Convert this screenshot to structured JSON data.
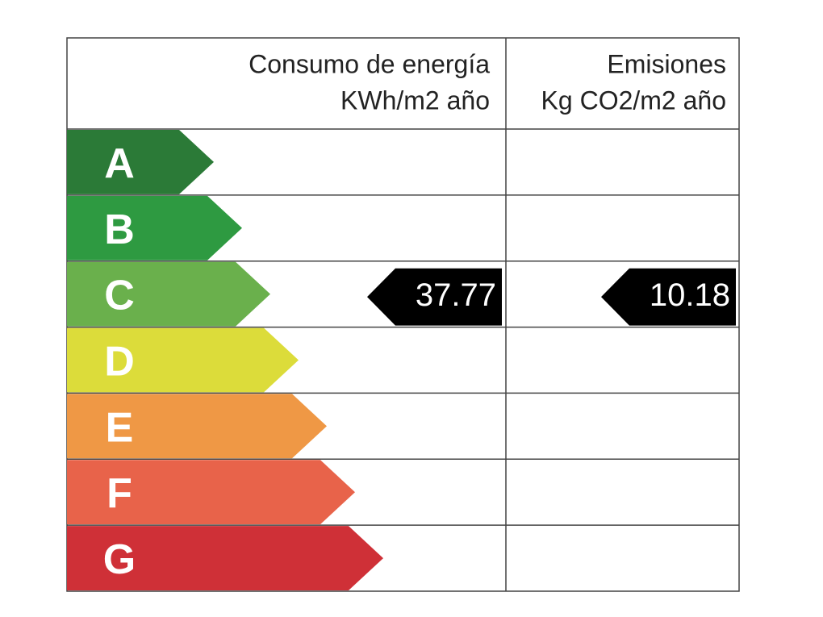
{
  "header": {
    "energy": {
      "title": "Consumo de energía",
      "unit": "KWh/m2 año"
    },
    "emissions": {
      "title": "Emisiones",
      "unit": "Kg CO2/m2 año"
    }
  },
  "ratings": [
    {
      "letter": "A",
      "color": "#2b7a37"
    },
    {
      "letter": "B",
      "color": "#2e9a41"
    },
    {
      "letter": "C",
      "color": "#6ab04c"
    },
    {
      "letter": "D",
      "color": "#dcdc3a"
    },
    {
      "letter": "E",
      "color": "#ef9845"
    },
    {
      "letter": "F",
      "color": "#e8634a"
    },
    {
      "letter": "G",
      "color": "#cf3037"
    }
  ],
  "energy": {
    "rating": "C",
    "value": 37.77
  },
  "emissions": {
    "rating": "C",
    "value": 10.18
  }
}
